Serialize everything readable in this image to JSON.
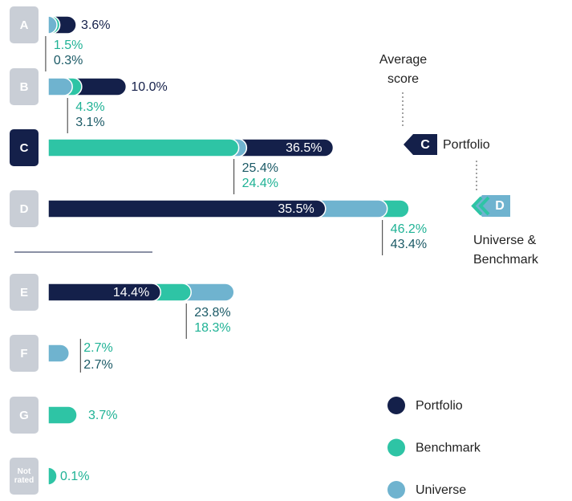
{
  "chart_data": {
    "type": "bar",
    "orientation": "horizontal",
    "categories": [
      "A",
      "B",
      "C",
      "D",
      "E",
      "F",
      "G",
      "Not rated"
    ],
    "highlight": "C",
    "xlim": [
      0,
      46
    ],
    "series": [
      {
        "name": "Portfolio",
        "color": "#14204a",
        "label_color": "#14204a",
        "values": [
          3.6,
          10.0,
          36.5,
          35.5,
          14.4,
          null,
          null,
          null
        ],
        "value_labels": [
          "3.6%",
          "10.0%",
          "36.5%",
          "35.5%",
          "14.4%",
          null,
          null,
          null
        ]
      },
      {
        "name": "Benchmark",
        "color": "#2ec4a5",
        "label_color": "#1fb295",
        "values": [
          1.5,
          4.3,
          24.4,
          46.2,
          18.3,
          2.7,
          3.7,
          0.1
        ],
        "value_labels": [
          "1.5%",
          "4.3%",
          "24.4%",
          "46.2%",
          "18.3%",
          "2.7%",
          "3.7%",
          "0.1%"
        ]
      },
      {
        "name": "Universe",
        "color": "#6fb3cf",
        "label_color": "#1b5a66",
        "values": [
          0.3,
          3.1,
          25.4,
          43.4,
          23.8,
          2.7,
          null,
          null
        ],
        "value_labels": [
          "0.3%",
          "3.1%",
          "25.4%",
          "43.4%",
          "23.8%",
          "2.7%",
          null,
          null
        ]
      }
    ],
    "average": {
      "title": "Average score",
      "portfolio_grade": "C",
      "portfolio_label": "Portfolio",
      "universe_grade": "D",
      "universe_label": "Universe & Benchmark"
    }
  }
}
